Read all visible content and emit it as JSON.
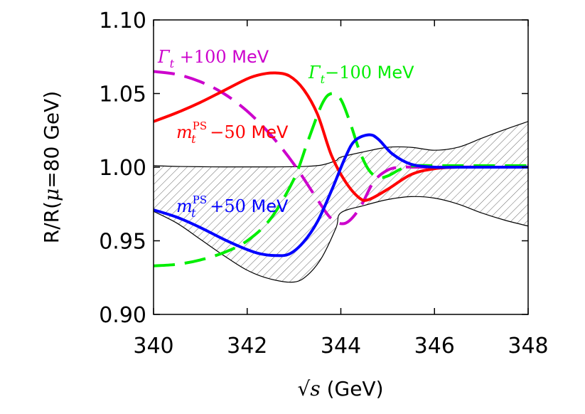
{
  "chart_data": {
    "type": "line",
    "xlabel": "√s (GeV)",
    "xlabel_parts": {
      "root": "√",
      "var": "s",
      "unit": " (GeV)"
    },
    "ylabel": "R/R(μ=80 GeV)",
    "ylabel_parts": {
      "pre": "R/R(",
      "mu": "μ",
      "post": "=80 GeV)"
    },
    "xlim": [
      340,
      348
    ],
    "ylim": [
      0.9,
      1.1
    ],
    "xticks": [
      340,
      342,
      344,
      346,
      348
    ],
    "xtick_labels": [
      "340",
      "342",
      "344",
      "346",
      "348"
    ],
    "yticks": [
      0.9,
      0.95,
      1.0,
      1.05,
      1.1
    ],
    "ytick_labels": [
      "0.90",
      "0.95",
      "1.00",
      "1.05",
      "1.10"
    ],
    "grid": false,
    "band": {
      "name": "uncertainty band",
      "fill": "hatched",
      "x": [
        340,
        340.5,
        341,
        341.5,
        342,
        342.5,
        343,
        343.3,
        343.6,
        343.9,
        344.0,
        344.5,
        345,
        345.5,
        346,
        346.5,
        347,
        347.5,
        348
      ],
      "upper": [
        1.001,
        1.0005,
        1.0003,
        1.0002,
        1.0002,
        1.0002,
        1.0003,
        1.0006,
        1.0015,
        1.0045,
        1.0068,
        1.0105,
        1.0135,
        1.0135,
        1.0115,
        1.0135,
        1.0195,
        1.0255,
        1.031
      ],
      "lower": [
        0.97,
        0.962,
        0.951,
        0.94,
        0.93,
        0.924,
        0.922,
        0.927,
        0.939,
        0.959,
        0.969,
        0.974,
        0.978,
        0.98,
        0.979,
        0.975,
        0.969,
        0.964,
        0.96
      ]
    },
    "series": [
      {
        "name": "m_t^PS −50 MeV",
        "color": "#ff0000",
        "dash": "solid",
        "x": [
          340,
          340.5,
          341,
          341.5,
          342,
          342.3,
          342.6,
          342.9,
          343.2,
          343.5,
          343.8,
          344.1,
          344.4,
          344.6,
          345,
          345.5,
          346,
          346.5,
          347,
          348
        ],
        "y": [
          1.031,
          1.037,
          1.044,
          1.052,
          1.06,
          1.063,
          1.064,
          1.062,
          1.053,
          1.036,
          1.008,
          0.99,
          0.979,
          0.978,
          0.985,
          0.995,
          0.999,
          1.0,
          1.0,
          1.0
        ]
      },
      {
        "name": "m_t^PS +50 MeV",
        "color": "#0000ff",
        "dash": "solid",
        "x": [
          340,
          340.5,
          341,
          341.5,
          342,
          342.3,
          342.6,
          342.9,
          343.2,
          343.5,
          343.8,
          344.1,
          344.3,
          344.6,
          344.8,
          345.1,
          345.5,
          346,
          346.5,
          347,
          348
        ],
        "y": [
          0.971,
          0.966,
          0.959,
          0.951,
          0.944,
          0.941,
          0.94,
          0.941,
          0.949,
          0.963,
          0.984,
          1.007,
          1.018,
          1.022,
          1.019,
          1.009,
          1.002,
          1.0,
          1.0,
          1.0,
          1.0
        ]
      },
      {
        "name": "Γ_t +100 MeV",
        "color": "#cc00cc",
        "dash": "dashed",
        "x": [
          340,
          340.5,
          341,
          341.5,
          342,
          342.5,
          343,
          343.5,
          343.8,
          344.1,
          344.4,
          344.7,
          345,
          345.3,
          345.6,
          346,
          346.5,
          347,
          348
        ],
        "y": [
          1.065,
          1.063,
          1.058,
          1.05,
          1.038,
          1.022,
          1.002,
          0.978,
          0.965,
          0.962,
          0.972,
          0.99,
          0.998,
          1.0,
          1.0,
          1.0,
          1.0,
          1.0,
          1.0
        ]
      },
      {
        "name": "Γ_t −100 MeV",
        "color": "#00ee00",
        "dash": "dashed",
        "x": [
          340,
          340.5,
          341,
          341.5,
          342,
          342.5,
          343,
          343.3,
          343.6,
          343.8,
          344.0,
          344.2,
          344.4,
          344.6,
          344.8,
          345,
          345.3,
          345.6,
          346,
          346.5,
          347,
          348
        ],
        "y": [
          0.933,
          0.934,
          0.937,
          0.942,
          0.95,
          0.965,
          0.992,
          1.018,
          1.043,
          1.05,
          1.046,
          1.03,
          1.011,
          0.998,
          0.993,
          0.994,
          0.999,
          1.001,
          1.001,
          1.001,
          1.001,
          1.001
        ]
      }
    ],
    "annotations": [
      {
        "name": "gamma-plus",
        "sym": "Γ",
        "sub": "t",
        "num": " +100",
        "unit": " MeV",
        "color": "#cc00cc"
      },
      {
        "name": "gamma-minus",
        "sym": "Γ",
        "sub": "t",
        "num": "−100",
        "unit": " MeV",
        "color": "#00ee00"
      },
      {
        "name": "mass-minus",
        "sym": "m",
        "sub": "t",
        "sup": "PS",
        "num": " −50",
        "unit": " MeV",
        "color": "#ff0000"
      },
      {
        "name": "mass-plus",
        "sym": "m",
        "sub": "t",
        "sup": "PS",
        "num": " +50",
        "unit": " MeV",
        "color": "#0000ff"
      }
    ]
  }
}
